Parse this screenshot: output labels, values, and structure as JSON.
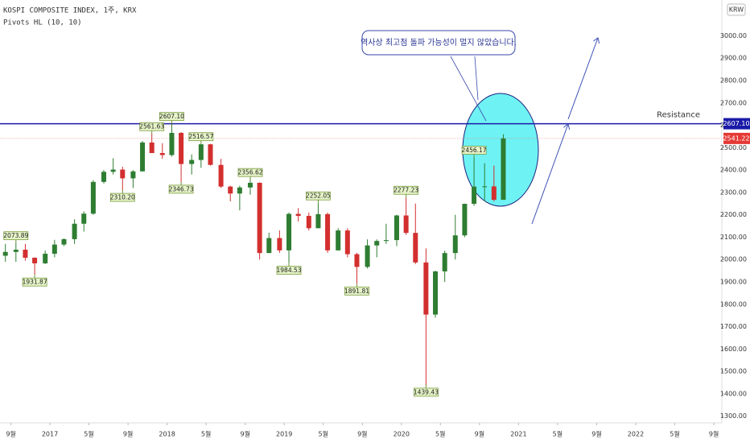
{
  "chart_data": {
    "type": "candlestick",
    "title": "KOSPI COMPOSITE INDEX, 1주, KRX",
    "subtitle": "Pivots HL (10, 10)",
    "currency": "KRW",
    "annotation": "역사상 최고점 돌파 가능성이 멀지 않았습니다.",
    "up_color": "#2e7d32",
    "down_color": "#d32f2f",
    "x": [
      2016.62,
      2016.71,
      2016.79,
      2016.87,
      2016.96,
      2017.04,
      2017.12,
      2017.21,
      2017.29,
      2017.37,
      2017.46,
      2017.54,
      2017.62,
      2017.71,
      2017.79,
      2017.87,
      2017.96,
      2018.04,
      2018.12,
      2018.21,
      2018.29,
      2018.37,
      2018.46,
      2018.54,
      2018.62,
      2018.71,
      2018.79,
      2018.87,
      2018.96,
      2019.04,
      2019.12,
      2019.21,
      2019.29,
      2019.37,
      2019.46,
      2019.54,
      2019.62,
      2019.71,
      2019.79,
      2019.87,
      2019.96,
      2020.04,
      2020.12,
      2020.21,
      2020.29,
      2020.37,
      2020.46,
      2020.54,
      2020.62,
      2020.71,
      2020.79,
      2020.87
    ],
    "open": [
      2017,
      2034,
      2044,
      2008,
      1983,
      2026,
      2067,
      2091,
      2160,
      2205,
      2347,
      2392,
      2402,
      2363,
      2394,
      2523,
      2476,
      2467,
      2566,
      2427,
      2445,
      2515,
      2423,
      2326,
      2295,
      2322,
      2343,
      2029,
      2096,
      2041,
      2204,
      2195,
      2140,
      2203,
      2041,
      2130,
      2024,
      1967,
      2063,
      2083,
      2087,
      2197,
      2119,
      1987,
      1754,
      1947,
      2029,
      2108,
      2249,
      2326,
      2327,
      2267
    ],
    "high": [
      2070,
      2074,
      2070,
      2010,
      2040,
      2088,
      2095,
      2180,
      2215,
      2355,
      2400,
      2453,
      2415,
      2400,
      2530,
      2562,
      2520,
      2607,
      2570,
      2470,
      2517,
      2517,
      2450,
      2330,
      2330,
      2357,
      2345,
      2120,
      2130,
      2210,
      2230,
      2210,
      2252,
      2210,
      2140,
      2140,
      2030,
      2090,
      2090,
      2160,
      2200,
      2277,
      2250,
      2050,
      1950,
      2040,
      2200,
      2250,
      2456,
      2430,
      2420,
      2560
    ],
    "low": [
      1990,
      1990,
      1995,
      1932,
      1980,
      2010,
      2060,
      2070,
      2125,
      2200,
      2340,
      2380,
      2310,
      2320,
      2394,
      2490,
      2450,
      2460,
      2347,
      2380,
      2410,
      2420,
      2320,
      2260,
      2220,
      2290,
      2000,
      2030,
      2030,
      1985,
      2170,
      2130,
      2140,
      2030,
      2040,
      2010,
      1892,
      1960,
      2010,
      2070,
      2060,
      2110,
      1980,
      1439,
      1740,
      1900,
      2000,
      2100,
      2240,
      2260,
      2260,
      2270
    ],
    "close": [
      2034,
      2044,
      2008,
      1983,
      2026,
      2067,
      2091,
      2160,
      2205,
      2347,
      2392,
      2402,
      2363,
      2394,
      2523,
      2476,
      2467,
      2566,
      2427,
      2445,
      2515,
      2423,
      2326,
      2295,
      2322,
      2343,
      2029,
      2096,
      2041,
      2204,
      2195,
      2140,
      2203,
      2041,
      2130,
      2024,
      1967,
      2063,
      2083,
      2087,
      2197,
      2119,
      1987,
      1754,
      1947,
      2029,
      2108,
      2249,
      2326,
      2327,
      2267,
      2541.22
    ],
    "pivot_highs": {
      "x": [
        2016.71,
        2017.87,
        2018.04,
        2018.29,
        2018.71,
        2019.29,
        2020.04,
        2020.62
      ],
      "values": [
        2073.89,
        2561.63,
        2607.1,
        2516.57,
        2356.62,
        2252.05,
        2277.23,
        2456.17
      ],
      "value_labels": [
        "2073.89",
        "2561.63",
        "2607.10",
        "2516.57",
        "2356.62",
        "2252.05",
        "2277.23",
        "2456.17"
      ]
    },
    "pivot_lows": {
      "x": [
        2016.87,
        2017.62,
        2018.12,
        2019.04,
        2019.62,
        2020.21
      ],
      "values": [
        1931.87,
        2310.2,
        2346.73,
        1984.53,
        1891.81,
        1439.43
      ],
      "value_labels": [
        "1931.87",
        "2310.20",
        "2346.73",
        "1984.53",
        "1891.81",
        "1439.43"
      ]
    },
    "resistance": {
      "label": "Resistance",
      "value": 2607.1,
      "value_label": "2607.10",
      "color": "#1a1aa8"
    },
    "xlim": [
      2016.574,
      2022.735
    ],
    "xticks": [
      {
        "value": 2016.667,
        "label": "9월"
      },
      {
        "value": 2017,
        "label": "2017"
      },
      {
        "value": 2017.333,
        "label": "5월"
      },
      {
        "value": 2017.667,
        "label": "9월"
      },
      {
        "value": 2018,
        "label": "2018"
      },
      {
        "value": 2018.333,
        "label": "5월"
      },
      {
        "value": 2018.667,
        "label": "9월"
      },
      {
        "value": 2019,
        "label": "2019"
      },
      {
        "value": 2019.333,
        "label": "5월"
      },
      {
        "value": 2019.667,
        "label": "9월"
      },
      {
        "value": 2020,
        "label": "2020"
      },
      {
        "value": 2020.333,
        "label": "5월"
      },
      {
        "value": 2020.667,
        "label": "9월"
      },
      {
        "value": 2021,
        "label": "2021"
      },
      {
        "value": 2021.333,
        "label": "5월"
      },
      {
        "value": 2021.667,
        "label": "9월"
      },
      {
        "value": 2022,
        "label": "2022"
      },
      {
        "value": 2022.333,
        "label": "5월"
      },
      {
        "value": 2022.667,
        "label": "9월"
      }
    ],
    "ylim": [
      1270,
      3160
    ],
    "yticks": [
      {
        "value": 1300,
        "label": "1300.00"
      },
      {
        "value": 1400,
        "label": "1400.00"
      },
      {
        "value": 1500,
        "label": "1500.00"
      },
      {
        "value": 1600,
        "label": "1600.00"
      },
      {
        "value": 1700,
        "label": "1700.00"
      },
      {
        "value": 1800,
        "label": "1800.00"
      },
      {
        "value": 1900,
        "label": "1900.00"
      },
      {
        "value": 2000,
        "label": "2000.00"
      },
      {
        "value": 2100,
        "label": "2100.00"
      },
      {
        "value": 2200,
        "label": "2200.00"
      },
      {
        "value": 2300,
        "label": "2300.00"
      },
      {
        "value": 2400,
        "label": "2400.00"
      },
      {
        "value": 2500,
        "label": "2500.00"
      },
      {
        "value": 2600,
        "label": "2600.00"
      },
      {
        "value": 2700,
        "label": "2700.00"
      },
      {
        "value": 2800,
        "label": "2800.00"
      },
      {
        "value": 2900,
        "label": "2900.00"
      },
      {
        "value": 3000,
        "label": "3000.00"
      }
    ]
  }
}
